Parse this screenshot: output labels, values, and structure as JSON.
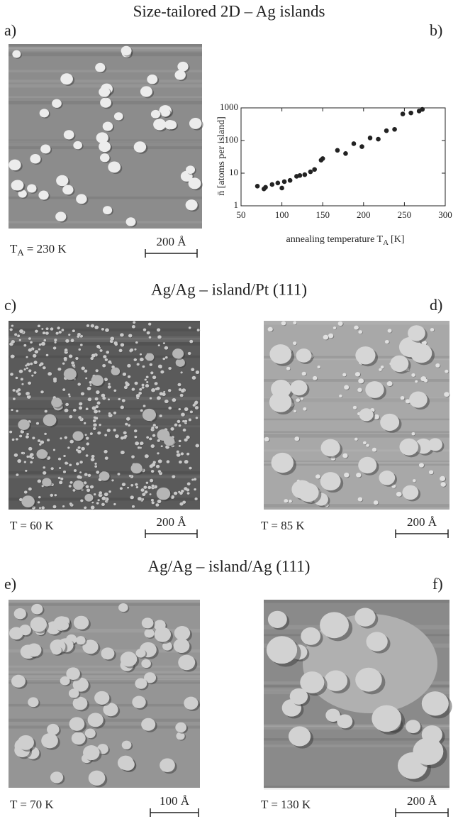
{
  "title": "Size-tailored 2D – Ag islands",
  "sections": [
    "Ag/Ag – island/Pt (111)",
    "Ag/Ag – island/Ag (111)"
  ],
  "panels": {
    "a": {
      "label": "a)",
      "caption": {
        "symbol": "T",
        "sub": "A",
        "rest": "= 230 K"
      },
      "scale_bar": "200 Å"
    },
    "b": {
      "label": "b)"
    },
    "c": {
      "label": "c)",
      "caption": "T = 60 K",
      "scale_bar": "200 Å"
    },
    "d": {
      "label": "d)",
      "caption": "T = 85 K",
      "scale_bar": "200 Å"
    },
    "e": {
      "label": "e)",
      "caption": "T = 70 K",
      "scale_bar": "100 Å"
    },
    "f": {
      "label": "f)",
      "caption": "T = 130 K",
      "scale_bar": "200 Å"
    }
  },
  "chart_data": {
    "type": "scatter",
    "xlabel": {
      "text": "annealing temperature T",
      "sub": "A",
      "unit": "[K]"
    },
    "ylabel": "n̄ [atoms per island]",
    "x": [
      70,
      78,
      80,
      88,
      95,
      100,
      103,
      110,
      118,
      122,
      128,
      135,
      140,
      148,
      150,
      168,
      178,
      188,
      198,
      208,
      218,
      228,
      238,
      248,
      258,
      268,
      272
    ],
    "values": [
      4,
      3.3,
      3.7,
      4.5,
      5,
      3.5,
      5.5,
      6,
      8,
      8.5,
      9,
      11,
      13,
      25,
      28,
      50,
      40,
      80,
      65,
      120,
      110,
      200,
      220,
      650,
      700,
      800,
      900
    ],
    "color": "#222",
    "xlim": [
      50,
      300
    ],
    "xticks": [
      50,
      100,
      150,
      200,
      250,
      300
    ],
    "ylim": [
      1,
      1000
    ],
    "yticks": [
      1,
      10,
      100,
      1000
    ],
    "ylog": true
  }
}
